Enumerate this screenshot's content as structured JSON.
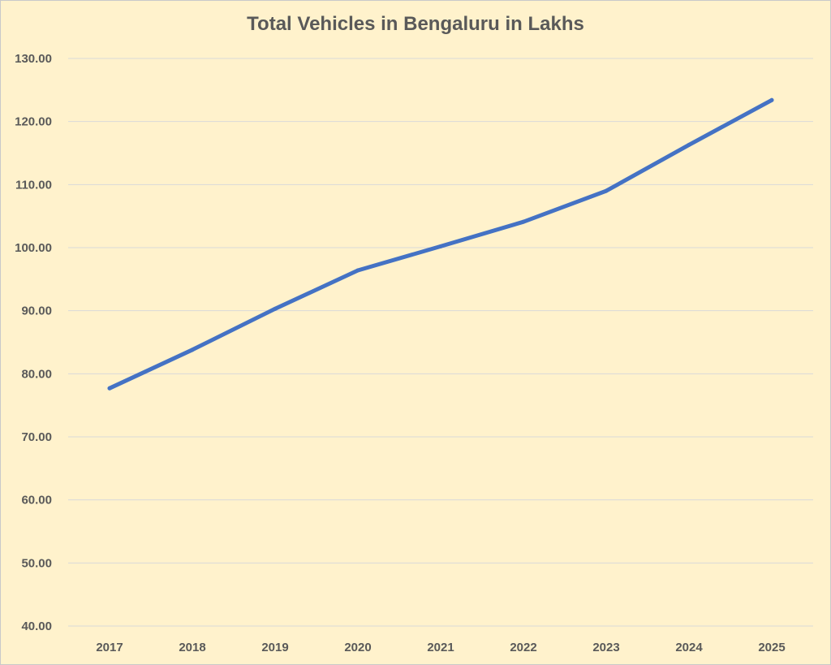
{
  "chart_data": {
    "type": "line",
    "title": "Total Vehicles in Bengaluru in Lakhs",
    "xlabel": "",
    "ylabel": "",
    "categories": [
      "2017",
      "2018",
      "2019",
      "2020",
      "2021",
      "2022",
      "2023",
      "2024",
      "2025"
    ],
    "series": [
      {
        "values": [
          77.7,
          83.8,
          90.3,
          96.4,
          100.2,
          104.1,
          109.0,
          116.3,
          123.4
        ]
      }
    ],
    "ylim": [
      40,
      130
    ],
    "y_ticks": [
      "40.00",
      "50.00",
      "60.00",
      "70.00",
      "80.00",
      "90.00",
      "100.00",
      "110.00",
      "120.00",
      "130.00"
    ],
    "grid": true,
    "legend": "none",
    "colors": {
      "background": "#fff2cc",
      "line": "#4472c4",
      "grid": "#d9d9d9",
      "text": "#595959"
    }
  }
}
